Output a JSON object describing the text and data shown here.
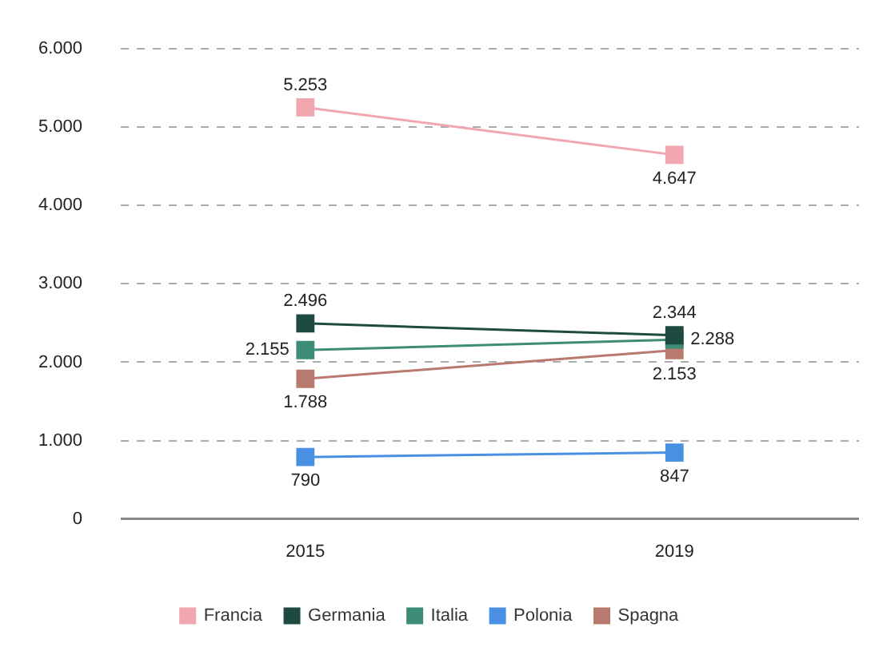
{
  "chart_data": {
    "type": "line",
    "categories": [
      "2015",
      "2019"
    ],
    "series": [
      {
        "name": "Francia",
        "color": "#f0a7b0",
        "values": [
          5253,
          4647
        ],
        "value_labels": [
          "5.253",
          "4.647"
        ]
      },
      {
        "name": "Germania",
        "color": "#1f4a42",
        "values": [
          2496,
          2344
        ],
        "value_labels": [
          "2.496",
          "2.344"
        ]
      },
      {
        "name": "Italia",
        "color": "#3d8c77",
        "values": [
          2155,
          2288
        ],
        "value_labels": [
          "2.155",
          "2.288"
        ]
      },
      {
        "name": "Polonia",
        "color": "#4a90e2",
        "values": [
          790,
          847
        ],
        "value_labels": [
          "790",
          "847"
        ]
      },
      {
        "name": "Spagna",
        "color": "#b87a6e",
        "values": [
          1788,
          2153
        ],
        "value_labels": [
          "1.788",
          "2.153"
        ]
      }
    ],
    "ylim": [
      0,
      6000
    ],
    "yticks": [
      {
        "value": 0,
        "label": "0"
      },
      {
        "value": 1000,
        "label": "1.000"
      },
      {
        "value": 2000,
        "label": "2.000"
      },
      {
        "value": 3000,
        "label": "3.000"
      },
      {
        "value": 4000,
        "label": "4.000"
      },
      {
        "value": 5000,
        "label": "5.000"
      },
      {
        "value": 6000,
        "label": "6.000"
      }
    ],
    "grid": "y",
    "legend": "bottom",
    "marker": "square",
    "line_style": "solid"
  }
}
